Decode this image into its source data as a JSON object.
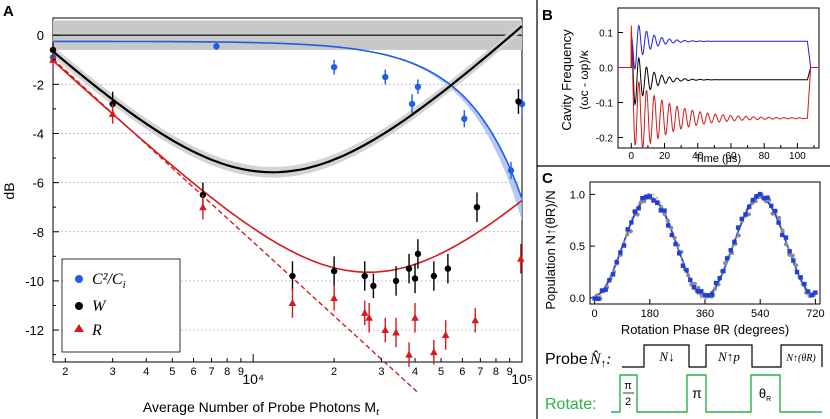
{
  "chart_data": [
    {
      "panel": "A",
      "type": "scatter",
      "xlabel": "Average Number of Probe Photons M",
      "xlabel_sub": "t",
      "ylabel": "dB",
      "x_scale": "log",
      "xlim": [
        1800,
        100000
      ],
      "ylim": [
        -13.3,
        0.7
      ],
      "yticks": [
        0,
        -2,
        -4,
        -6,
        -8,
        -10,
        -12
      ],
      "ytick_labels": [
        "0",
        "-2",
        "-4",
        "-6",
        "-8",
        "-10",
        "-12"
      ],
      "xtick_major_labels": [
        "10⁴",
        "10⁵"
      ],
      "xtick_minor_labels": [
        "2",
        "3",
        "4",
        "5",
        "6",
        "7",
        "8",
        "9",
        "2",
        "3",
        "4",
        "5",
        "6",
        "7",
        "8",
        "9"
      ],
      "grid": "dotted horizontal",
      "legend_position": "bottom-left",
      "shaded_band_near_zero": [
        -0.6,
        0.6
      ],
      "colors": {
        "blue": "#1f5ee6",
        "black": "#000000",
        "red": "#d41a1a",
        "band_blue": "#a9bff2",
        "band_gray": "#c8c8c8"
      },
      "series": [
        {
          "name": "C²/C",
          "name_sub": "i",
          "marker": "circle",
          "color": "#1f5ee6",
          "x": [
            1800,
            7300,
            20000,
            31000,
            41000,
            39000,
            61000,
            91000,
            100000
          ],
          "y": [
            -0.9,
            -0.45,
            -1.3,
            -1.7,
            -2.1,
            -2.8,
            -3.4,
            -5.5,
            -2.8
          ],
          "err": [
            0.25,
            0.15,
            0.3,
            0.3,
            0.3,
            0.4,
            0.35,
            0.35,
            0.5
          ]
        },
        {
          "name": "W",
          "marker": "circle",
          "color": "#000000",
          "x": [
            1800,
            3000,
            6500,
            14000,
            20000,
            26000,
            28000,
            34000,
            38000,
            40000,
            41000,
            47000,
            53000,
            68000,
            97000
          ],
          "y": [
            -0.6,
            -2.8,
            -6.5,
            -9.8,
            -9.6,
            -9.8,
            -10.2,
            -10.0,
            -9.5,
            -9.9,
            -8.9,
            -9.8,
            -9.5,
            -7.0,
            -2.7
          ],
          "err": [
            0.3,
            0.5,
            0.5,
            0.6,
            0.6,
            0.6,
            0.5,
            0.6,
            0.6,
            0.6,
            0.6,
            0.6,
            0.6,
            0.6,
            0.5
          ]
        },
        {
          "name": "R",
          "marker": "triangle",
          "color": "#d41a1a",
          "x": [
            1800,
            3000,
            6500,
            14000,
            20000,
            26000,
            27000,
            31000,
            34000,
            38000,
            40000,
            47000,
            52000,
            67000,
            99000
          ],
          "y": [
            -1.0,
            -3.2,
            -7.0,
            -10.9,
            -10.7,
            -11.3,
            -11.5,
            -12.0,
            -12.1,
            -13.0,
            -11.5,
            -12.9,
            -12.2,
            -11.6,
            -9.1
          ],
          "err": [
            0.3,
            0.4,
            0.5,
            0.6,
            0.5,
            0.5,
            0.6,
            0.5,
            0.6,
            0.5,
            0.6,
            0.5,
            0.6,
            0.5,
            0.6
          ]
        }
      ]
    },
    {
      "panel": "B",
      "type": "line",
      "xlabel": "Time (μs)",
      "ylabel_line1": "Cavity Frequency",
      "ylabel_line2": "(ωc - ωp)/κ",
      "xlim": [
        -8,
        113
      ],
      "ylim": [
        -0.23,
        0.17
      ],
      "xticks": [
        0,
        20,
        40,
        60,
        80,
        100
      ],
      "yticks": [
        0.1,
        0.0,
        -0.1,
        -0.2
      ],
      "ytick_labels": [
        "0.1",
        "0.0",
        "-0.1",
        "-0.2"
      ],
      "series": [
        {
          "color": "#1f1fe6",
          "steady": 0.075
        },
        {
          "color": "#000000",
          "steady": -0.035
        },
        {
          "color": "#d41a1a",
          "steady": -0.145
        }
      ]
    },
    {
      "panel": "C",
      "type": "scatter",
      "xlabel": "Rotation Phase θR (degrees)",
      "ylabel": "Population N↑(θR)/N",
      "xlim": [
        -15,
        735
      ],
      "ylim": [
        -0.06,
        1.12
      ],
      "xticks": [
        0,
        180,
        360,
        540,
        720
      ],
      "yticks": [
        0.0,
        0.5,
        1.0
      ],
      "ytick_labels": [
        "0.0",
        "0.5",
        "1.0"
      ],
      "series": [
        {
          "marker": "square",
          "color": "#1f3fd6",
          "fit": "(1 - cos θ)/2"
        },
        {
          "marker": "circle",
          "color": "#8c8c8c"
        }
      ]
    }
  ],
  "labels": {
    "panel_a": "A",
    "panel_b": "B",
    "panel_c": "C",
    "probe_label": "Probe",
    "rotate_label": "Rotate:",
    "probe_n_down": "N↓",
    "probe_n_up_p": "N↑p",
    "probe_n_up_theta": "N↑(θR)",
    "pulse_pi_over_2_top": "π",
    "pulse_pi_over_2_bottom": "2",
    "pulse_pi": "π",
    "pulse_theta": "θ",
    "pulse_theta_sub": "R"
  }
}
